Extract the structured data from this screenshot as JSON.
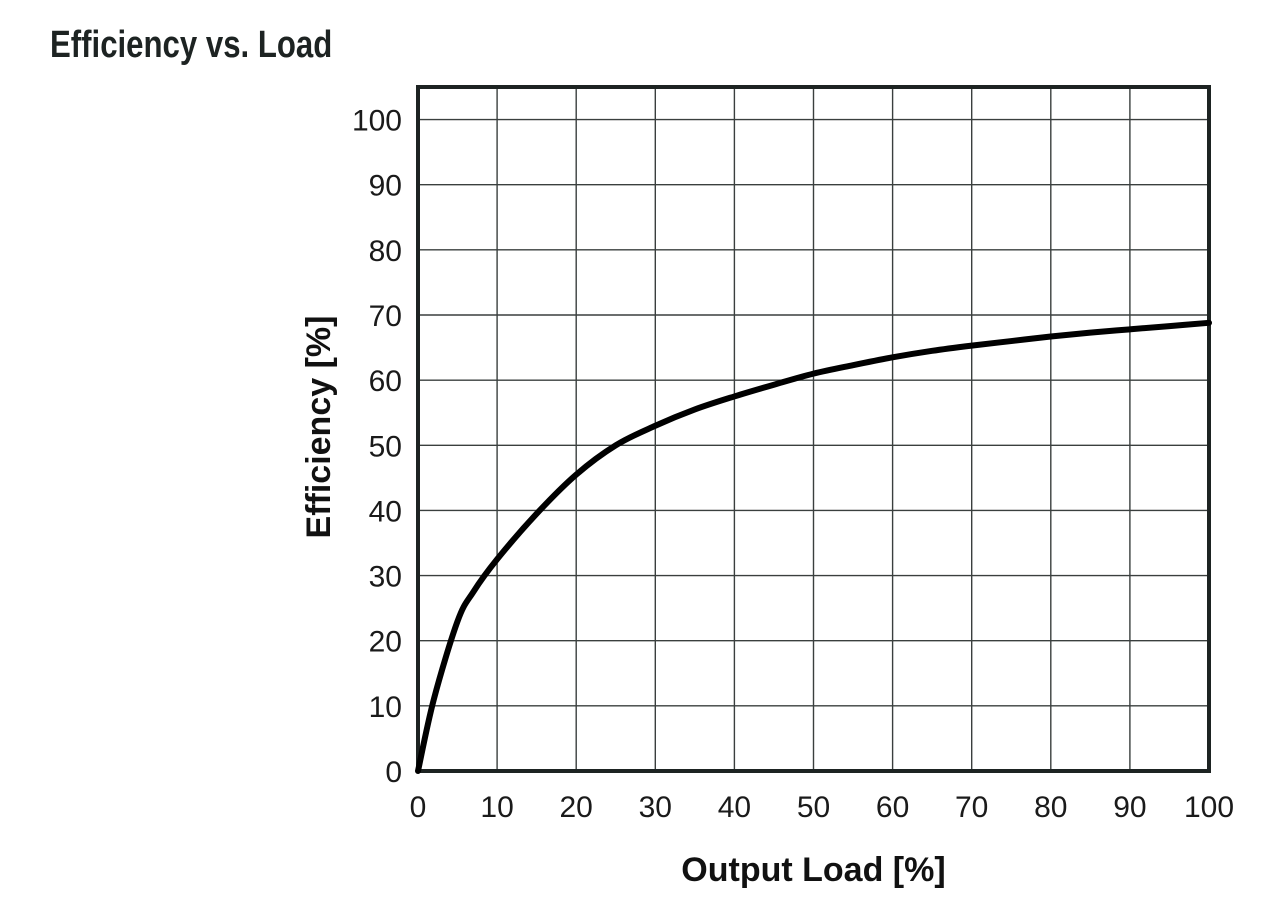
{
  "chart_data": {
    "type": "line",
    "title": "Efficiency vs. Load",
    "xlabel": "Output Load [%]",
    "ylabel": "Efficiency [%]",
    "xlim": [
      0,
      100
    ],
    "ylim": [
      0,
      105
    ],
    "xticks": [
      0,
      10,
      20,
      30,
      40,
      50,
      60,
      70,
      80,
      90,
      100
    ],
    "yticks": [
      0,
      10,
      20,
      30,
      40,
      50,
      60,
      70,
      80,
      90,
      100
    ],
    "grid": true,
    "series": [
      {
        "color": "#000000",
        "x": [
          0,
          2,
          5,
          7,
          10,
          15,
          20,
          25,
          30,
          35,
          40,
          45,
          50,
          55,
          60,
          65,
          70,
          75,
          80,
          85,
          90,
          95,
          100
        ],
        "y": [
          0,
          11,
          23,
          27.5,
          32.5,
          39.5,
          45.5,
          50,
          53,
          55.5,
          57.5,
          59.3,
          61,
          62.3,
          63.5,
          64.5,
          65.3,
          66,
          66.7,
          67.3,
          67.8,
          68.3,
          68.8
        ]
      }
    ]
  }
}
